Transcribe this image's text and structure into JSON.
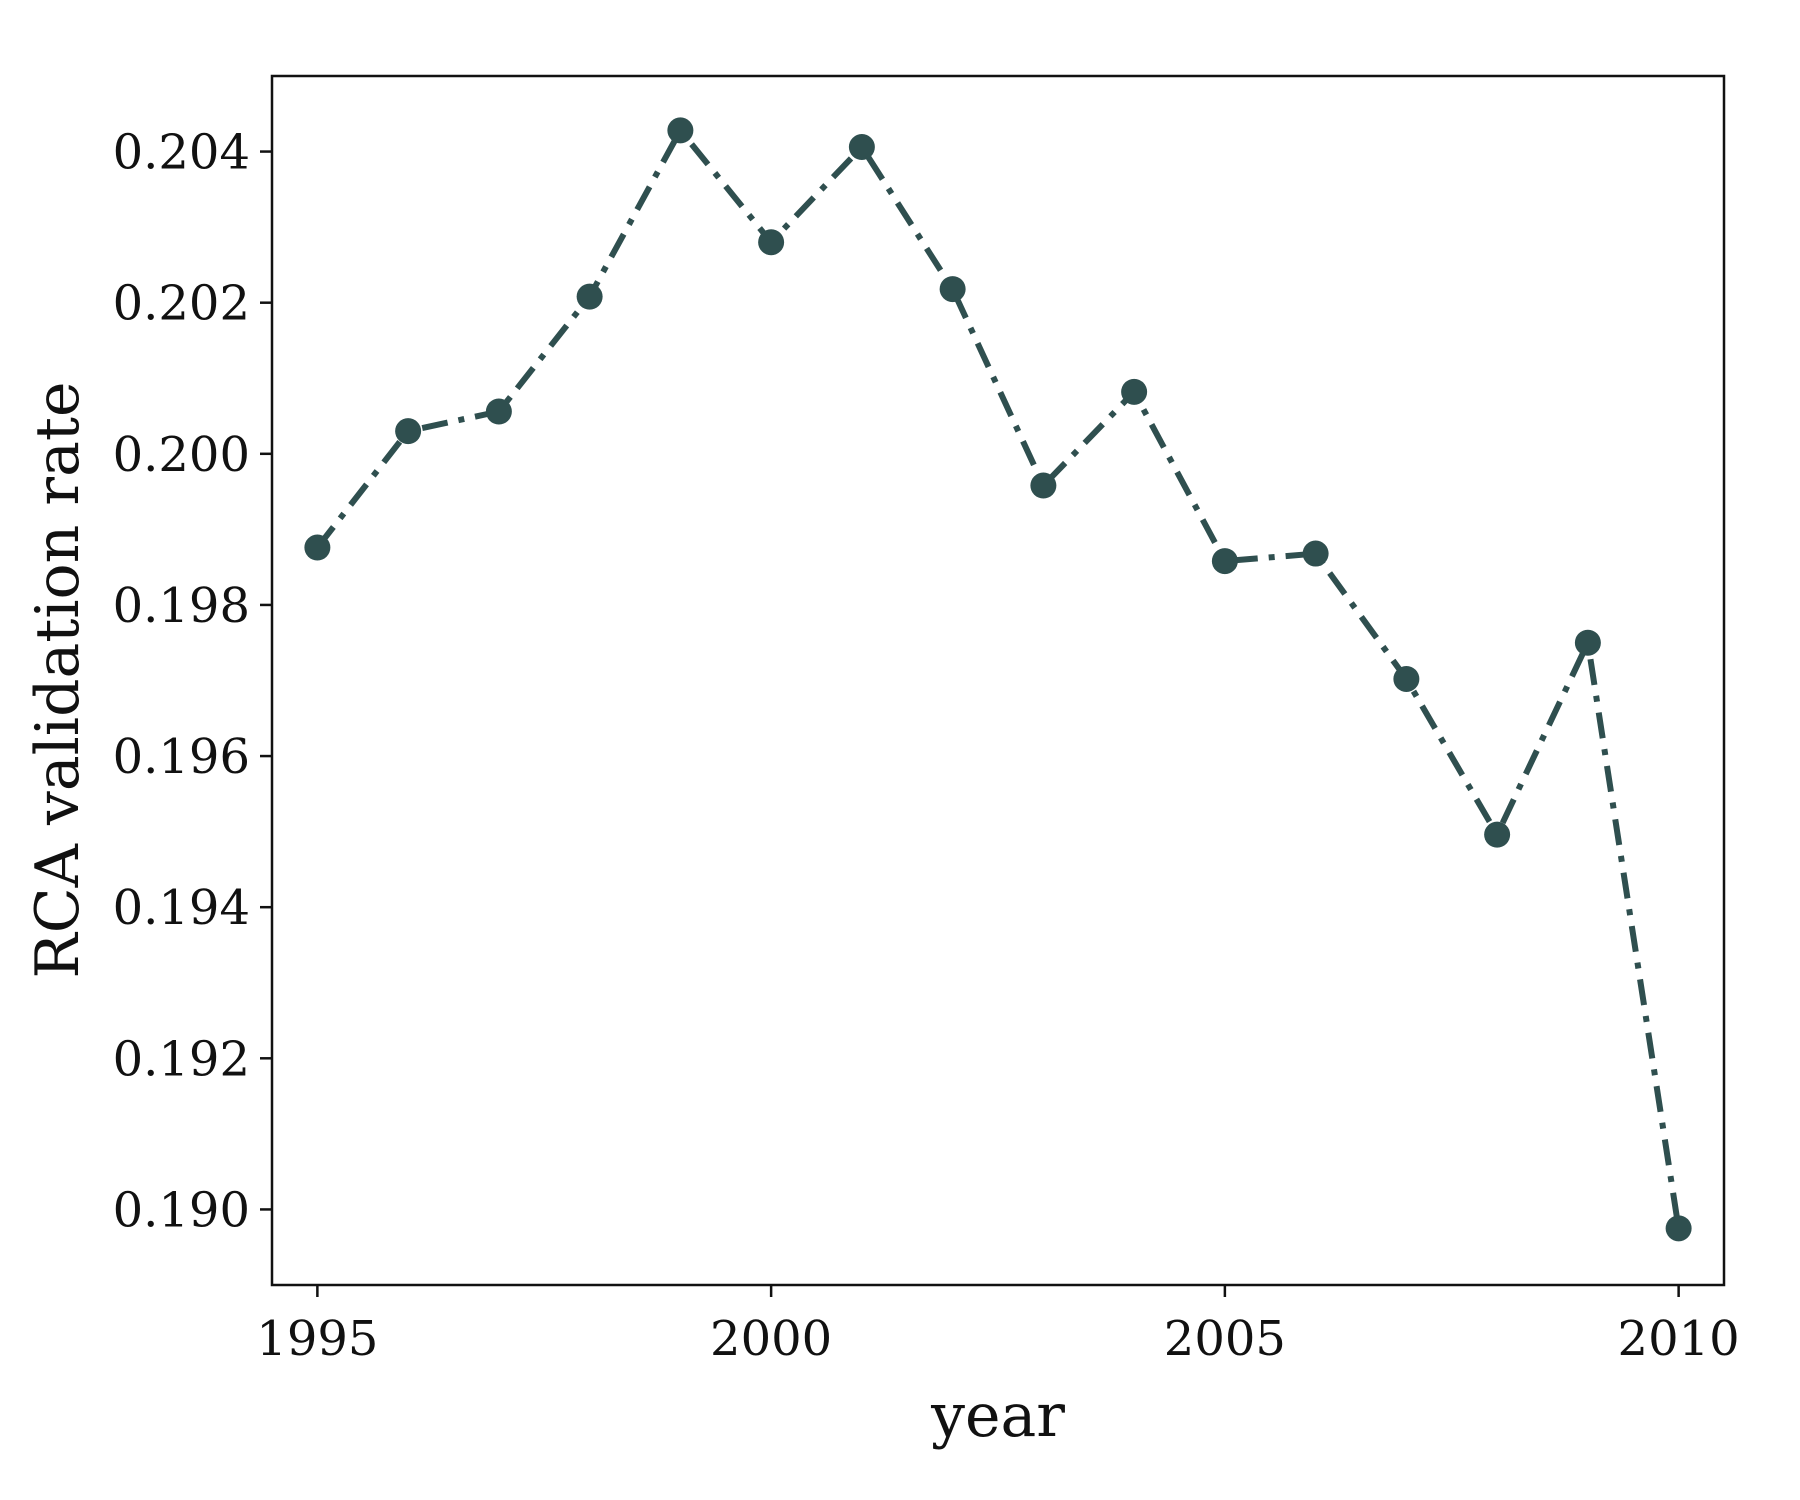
{
  "chart_data": {
    "type": "line",
    "title": "",
    "xlabel": "year",
    "ylabel": "RCA validation rate",
    "xlim": [
      1994.5,
      2010.5
    ],
    "ylim": [
      0.189,
      0.205
    ],
    "xticks": [
      1995,
      2000,
      2005,
      2010
    ],
    "xtick_labels": [
      "1995",
      "2000",
      "2005",
      "2010"
    ],
    "yticks": [
      0.19,
      0.192,
      0.194,
      0.196,
      0.198,
      0.2,
      0.202,
      0.204
    ],
    "ytick_labels": [
      "0.190",
      "0.192",
      "0.194",
      "0.196",
      "0.198",
      "0.200",
      "0.202",
      "0.204"
    ],
    "grid": false,
    "legend": false,
    "x": [
      1995,
      1996,
      1997,
      1998,
      1999,
      2000,
      2001,
      2002,
      2003,
      2004,
      2005,
      2006,
      2007,
      2008,
      2009,
      2010
    ],
    "series": [
      {
        "values": [
          0.19876,
          0.2003,
          0.20056,
          0.20208,
          0.20428,
          0.2028,
          0.20406,
          0.20218,
          0.19958,
          0.20082,
          0.19858,
          0.19868,
          0.19702,
          0.19496,
          0.1975,
          0.18975
        ],
        "color": "#2f4f4f",
        "line_style": "dash-dot",
        "marker": "circle"
      }
    ]
  }
}
